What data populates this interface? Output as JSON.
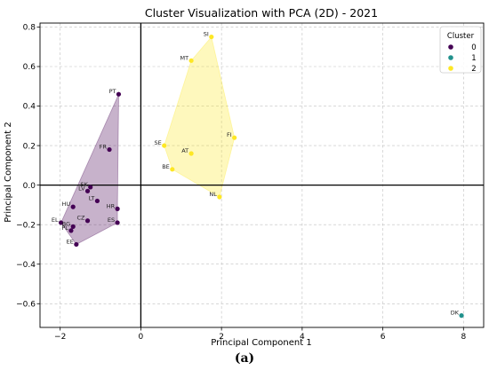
{
  "chart_data": {
    "type": "scatter",
    "title": "Cluster Visualization with PCA (2D) - 2021",
    "xlabel": "Principal Component 1",
    "ylabel": "Principal Component 2",
    "xlim": [
      -2.5,
      8.5
    ],
    "ylim": [
      -0.72,
      0.82
    ],
    "xticks": [
      -2,
      0,
      2,
      4,
      6,
      8
    ],
    "yticks": [
      -0.6,
      -0.4,
      -0.2,
      0.0,
      0.2,
      0.4,
      0.6,
      0.8
    ],
    "grid": true,
    "legend": {
      "title": "Cluster",
      "placement": "top-right"
    },
    "series": [
      {
        "name": "0",
        "color": "#440154",
        "points": [
          {
            "label": "PT",
            "x": -0.55,
            "y": 0.46
          },
          {
            "label": "FR",
            "x": -0.78,
            "y": 0.18
          },
          {
            "label": "SK",
            "x": -1.25,
            "y": -0.01
          },
          {
            "label": "LV",
            "x": -1.32,
            "y": -0.03
          },
          {
            "label": "LT",
            "x": -1.08,
            "y": -0.08
          },
          {
            "label": "HU",
            "x": -1.68,
            "y": -0.11
          },
          {
            "label": "HR",
            "x": -0.58,
            "y": -0.12
          },
          {
            "label": "CZ",
            "x": -1.32,
            "y": -0.18
          },
          {
            "label": "ES",
            "x": -0.58,
            "y": -0.19
          },
          {
            "label": "EL",
            "x": -1.98,
            "y": -0.19
          },
          {
            "label": "BG",
            "x": -1.68,
            "y": -0.21
          },
          {
            "label": "PL",
            "x": -1.73,
            "y": -0.23
          },
          {
            "label": "EE",
            "x": -1.6,
            "y": -0.3
          }
        ]
      },
      {
        "name": "1",
        "color": "#21918c",
        "points": [
          {
            "label": "DK",
            "x": 7.95,
            "y": -0.66
          }
        ]
      },
      {
        "name": "2",
        "color": "#fde725",
        "points": [
          {
            "label": "SI",
            "x": 1.75,
            "y": 0.75
          },
          {
            "label": "MT",
            "x": 1.25,
            "y": 0.63
          },
          {
            "label": "FI",
            "x": 2.32,
            "y": 0.24
          },
          {
            "label": "SE",
            "x": 0.58,
            "y": 0.2
          },
          {
            "label": "AT",
            "x": 1.25,
            "y": 0.16
          },
          {
            "label": "BE",
            "x": 0.78,
            "y": 0.08
          },
          {
            "label": "NL",
            "x": 1.95,
            "y": -0.06
          }
        ]
      }
    ],
    "hulls": [
      {
        "series": "0",
        "fill": "#440154",
        "vertices": [
          "PT",
          "HR",
          "ES",
          "EE",
          "EL"
        ]
      },
      {
        "series": "2",
        "fill": "#fde725",
        "vertices": [
          "SI",
          "FI",
          "NL",
          "BE",
          "SE",
          "MT"
        ]
      }
    ],
    "reference_lines": {
      "x": 0,
      "y": 0
    }
  },
  "caption": "(a)"
}
